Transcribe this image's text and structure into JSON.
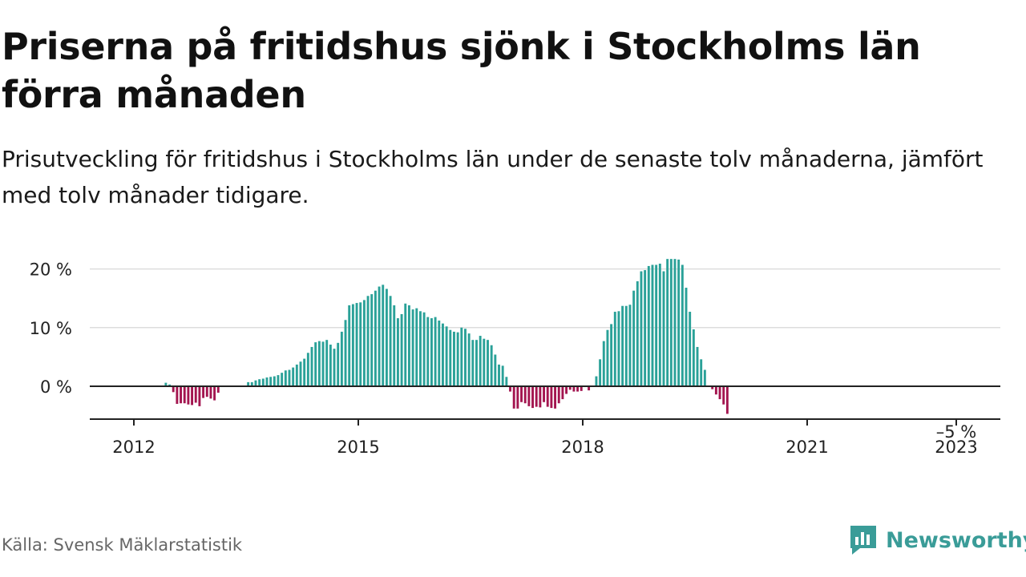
{
  "title": "Priserna på fritidshus sjönk i Stockholms län förra månaden",
  "subtitle": "Prisutveckling för fritidshus i Stockholms län under de senaste tolv månaderna, jämfört med tolv månader tidigare.",
  "source": "Källa: Svensk Mäklarstatistik",
  "brand": {
    "name": "Newsworthy",
    "icon": "newsworthy-logo-icon",
    "color": "#3a9c98"
  },
  "colors": {
    "positive": "#2aa198",
    "negative": "#a3154f",
    "grid": "#dddddd",
    "axis": "#222222"
  },
  "chart_data": {
    "type": "bar",
    "x_ticks": [
      "2012",
      "2015",
      "2018",
      "2021",
      "2023"
    ],
    "y_ticks": [
      "20 %",
      "10 %",
      "0 %"
    ],
    "ylim": [
      -5.5,
      21
    ],
    "grid": true,
    "start": "2011-04",
    "annotation": {
      "label": "–5 %",
      "value": -5
    },
    "series": [
      {
        "values": [
          0.0,
          0.0,
          0.0,
          0.0,
          0.0,
          0.0,
          0.0,
          0.0,
          0.0,
          0.0,
          0.0,
          0.0,
          0.0,
          0.0,
          0.6,
          0.3,
          -1.0,
          -3.0,
          -2.9,
          -2.9,
          -3.1,
          -3.2,
          -2.8,
          -3.4,
          -2.0,
          -1.8,
          -2.1,
          -2.4,
          -1.1,
          0.0,
          0.0,
          0.0,
          0.0,
          0.0,
          0.0,
          0.0,
          0.7,
          0.7,
          1.0,
          1.2,
          1.3,
          1.5,
          1.6,
          1.7,
          1.9,
          2.3,
          2.7,
          2.8,
          3.2,
          3.7,
          4.2,
          4.7,
          5.7,
          6.7,
          7.5,
          7.7,
          7.6,
          7.9,
          7.1,
          6.4,
          7.4,
          9.3,
          11.3,
          13.8,
          14.0,
          14.2,
          14.3,
          14.7,
          15.4,
          15.7,
          16.3,
          17.0,
          17.3,
          16.6,
          15.4,
          13.8,
          11.6,
          12.3,
          14.1,
          13.8,
          13.1,
          13.3,
          12.8,
          12.6,
          11.8,
          11.6,
          11.8,
          11.2,
          10.7,
          10.2,
          9.6,
          9.3,
          9.2,
          10.0,
          9.8,
          9.0,
          7.9,
          7.9,
          8.6,
          8.1,
          7.9,
          7.0,
          5.4,
          3.7,
          3.5,
          1.6,
          -0.9,
          -3.8,
          -3.8,
          -2.7,
          -2.9,
          -3.4,
          -3.7,
          -3.5,
          -3.6,
          -2.7,
          -3.5,
          -3.7,
          -3.8,
          -2.9,
          -2.2,
          -1.3,
          -0.6,
          -0.9,
          -0.9,
          -0.8,
          0.0,
          -0.7,
          0.0,
          1.7,
          4.6,
          7.7,
          9.6,
          10.6,
          12.7,
          12.8,
          13.7,
          13.7,
          13.9,
          16.3,
          17.9,
          19.6,
          19.8,
          20.5,
          20.7,
          20.7,
          20.9,
          19.6,
          21.7,
          21.7,
          21.7,
          21.6,
          20.7,
          16.8,
          12.7,
          9.7,
          6.7,
          4.6,
          2.8,
          0.0,
          -0.5,
          -1.4,
          -2.2,
          -3.1,
          -4.7
        ]
      }
    ]
  }
}
